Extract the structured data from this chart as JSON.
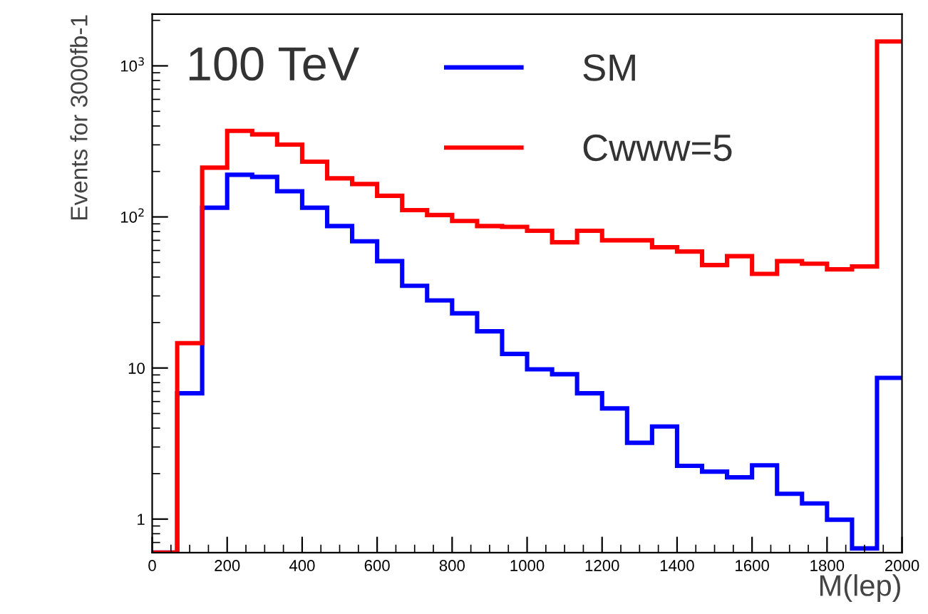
{
  "chart_data": {
    "type": "histogram",
    "xlabel": "M(lep)",
    "ylabel": "Events for 3000fb-1",
    "annotations": [
      "100 TeV"
    ],
    "bins": [
      0,
      66.7,
      133.3,
      200,
      266.7,
      333.3,
      400,
      466.7,
      533.3,
      600,
      666.7,
      733.3,
      800,
      866.7,
      933.3,
      1000,
      1066.7,
      1133.3,
      1200,
      1266.7,
      1333.3,
      1400,
      1466.7,
      1533.3,
      1600,
      1666.7,
      1733.3,
      1800,
      1866.7,
      1933.3,
      2000
    ],
    "series": [
      {
        "name": "SM",
        "color": "#0000ff",
        "values": [
          0.6,
          6.8,
          115,
          190,
          184,
          148,
          115,
          87,
          69,
          51,
          35,
          28,
          23,
          17.5,
          12.4,
          9.8,
          9.1,
          6.8,
          5.4,
          3.2,
          4.1,
          2.25,
          2.06,
          1.89,
          2.27,
          1.47,
          1.27,
          0.99,
          0.64,
          8.6
        ]
      },
      {
        "name": "Cwww=5",
        "color": "#ff0000",
        "values": [
          0.6,
          14.6,
          212,
          371,
          352,
          301,
          232,
          180,
          165,
          138,
          111,
          103,
          94,
          87,
          86,
          81,
          68,
          81,
          70,
          70,
          63,
          59,
          48,
          55,
          42,
          51,
          49,
          45,
          47,
          1450
        ]
      }
    ],
    "xlim": [
      0,
      2000
    ],
    "xticks": [
      0,
      200,
      400,
      600,
      800,
      1000,
      1200,
      1400,
      1600,
      1800,
      2000
    ],
    "ylim": [
      0.6,
      2200
    ],
    "yticks": [
      1,
      10,
      {
        "value": 100,
        "label": "10$^{2}$"
      },
      {
        "value": 1000,
        "label": "10$^{3}$"
      }
    ],
    "log": "y",
    "grid": false,
    "legend": "top right"
  }
}
